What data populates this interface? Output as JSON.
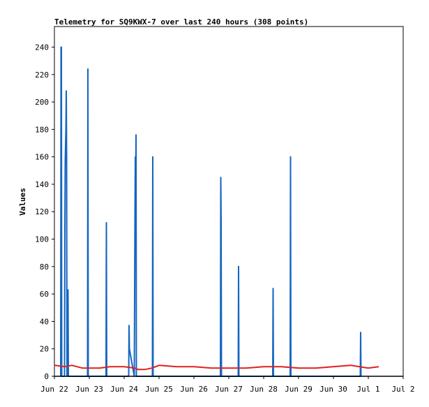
{
  "chart_data": {
    "type": "line",
    "title": "Telemetry for SQ9KWX-7 over last 240 hours (308 points)",
    "xlabel": "",
    "ylabel": "Values",
    "x_ticks": [
      "Jun 22",
      "Jun 23",
      "Jun 24",
      "Jun 25",
      "Jun 26",
      "Jun 27",
      "Jun 28",
      "Jun 29",
      "Jun 30",
      "Jul 1",
      "Jul 2"
    ],
    "y_ticks": [
      0,
      20,
      40,
      60,
      80,
      100,
      120,
      140,
      160,
      180,
      200,
      220,
      240
    ],
    "xlim": [
      0,
      10
    ],
    "ylim": [
      0,
      255
    ],
    "grid": false,
    "legend": "none",
    "colors": {
      "series_blue": "#1565c0",
      "series_red": "#e02020",
      "axis": "#000000",
      "frame": "#000000"
    },
    "series": [
      {
        "color": "#1565c0",
        "x": [
          0.18,
          0.19,
          0.2,
          0.21,
          0.29,
          0.3,
          0.31,
          0.33,
          0.34,
          0.35,
          0.36,
          0.37,
          0.38,
          0.39,
          0.4,
          0.41,
          0.42,
          0.95,
          0.96,
          0.97,
          1.48,
          1.49,
          1.5,
          2.12,
          2.13,
          2.14,
          2.15,
          2.29,
          2.3,
          2.31,
          2.32,
          2.33,
          2.34,
          2.35,
          2.81,
          2.82,
          2.83,
          4.76,
          4.77,
          4.78,
          4.79,
          5.27,
          5.28,
          5.29,
          6.26,
          6.27,
          6.28,
          6.76,
          6.77,
          6.78,
          8.77,
          8.78,
          8.79
        ],
        "y": [
          0,
          240,
          240,
          0,
          0,
          108,
          157,
          180,
          208,
          160,
          0,
          63,
          55,
          63,
          0,
          0,
          0,
          0,
          224,
          0,
          0,
          112,
          0,
          0,
          0,
          37,
          20,
          0,
          60,
          120,
          160,
          132,
          176,
          0,
          0,
          160,
          0,
          0,
          145,
          112,
          0,
          0,
          80,
          0,
          0,
          64,
          0,
          0,
          160,
          0,
          0,
          32,
          0
        ]
      },
      {
        "color": "#e02020",
        "x": [
          0.0,
          0.3,
          0.5,
          0.8,
          1.0,
          1.3,
          1.6,
          2.0,
          2.3,
          2.4,
          2.6,
          2.8,
          3.0,
          3.5,
          4.0,
          4.5,
          5.0,
          5.5,
          6.0,
          6.5,
          7.0,
          7.5,
          8.0,
          8.5,
          9.0,
          9.3
        ],
        "y": [
          8,
          7,
          8,
          6,
          6,
          6,
          7,
          7,
          6,
          5,
          5,
          6,
          8,
          7,
          7,
          6,
          6,
          6,
          7,
          7,
          6,
          6,
          7,
          8,
          6,
          7
        ]
      }
    ]
  }
}
